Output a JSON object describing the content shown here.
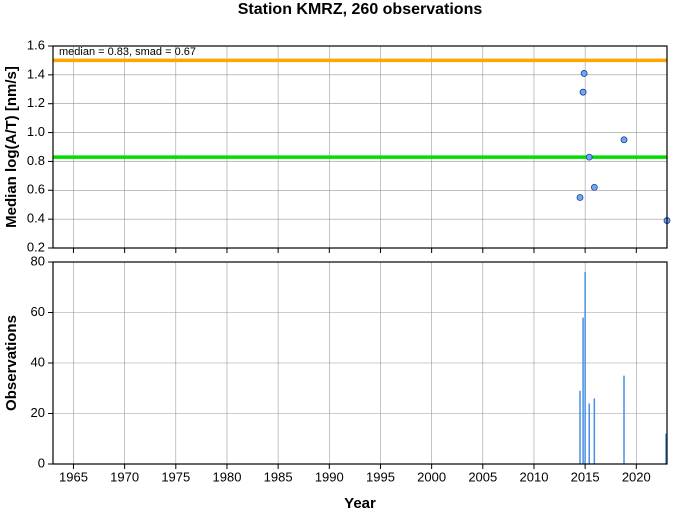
{
  "chart_data": [
    {
      "type": "scatter",
      "title": "Station KMRZ, 260 observations",
      "ylabel": "Median log(A/T) [nm/s]",
      "annotation": "median = 0.83, smad = 0.67",
      "x": [
        2014.9,
        2014.8,
        2018.8,
        2015.4,
        2015.9,
        2014.5,
        2023.0
      ],
      "values": [
        1.41,
        1.28,
        0.95,
        0.83,
        0.62,
        0.55,
        0.39
      ],
      "color": "#6fa8f5",
      "hlines": [
        {
          "value": 1.5,
          "color": "#ffa500"
        },
        {
          "value": 0.83,
          "color": "#00e000"
        }
      ],
      "xlim": [
        1963,
        2023
      ],
      "xticks": [
        1965,
        1970,
        1975,
        1980,
        1985,
        1990,
        1995,
        2000,
        2005,
        2010,
        2015,
        2020
      ],
      "ylim": [
        0.2,
        1.6
      ],
      "yticks": [
        0.2,
        0.4,
        0.6,
        0.8,
        {
          "value": 1,
          "label": "1.0"
        },
        1.2,
        1.4,
        1.6
      ],
      "grid": true
    },
    {
      "type": "bar",
      "ylabel": "Observations",
      "xlabel": "Year",
      "x": [
        2014.5,
        2014.8,
        2015.0,
        2015.4,
        2015.9,
        2018.8,
        2022.9
      ],
      "values": [
        29,
        58,
        76,
        24,
        26,
        35,
        12
      ],
      "color": "#4a90e2",
      "xlim": [
        1963,
        2023
      ],
      "xticks": [
        1965,
        1970,
        1975,
        1980,
        1985,
        1990,
        1995,
        2000,
        2005,
        2010,
        2015,
        2020
      ],
      "ylim": [
        0,
        80
      ],
      "yticks": [
        0,
        20,
        40,
        60,
        80
      ],
      "grid": true
    }
  ]
}
